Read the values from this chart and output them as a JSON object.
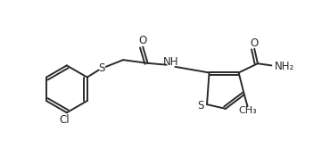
{
  "bg_color": "#ffffff",
  "line_color": "#2a2a2a",
  "line_width": 1.4,
  "font_size": 8.5,
  "fig_width": 3.7,
  "fig_height": 1.85,
  "dpi": 100,
  "xlim": [
    0,
    10
  ],
  "ylim": [
    0,
    5
  ]
}
